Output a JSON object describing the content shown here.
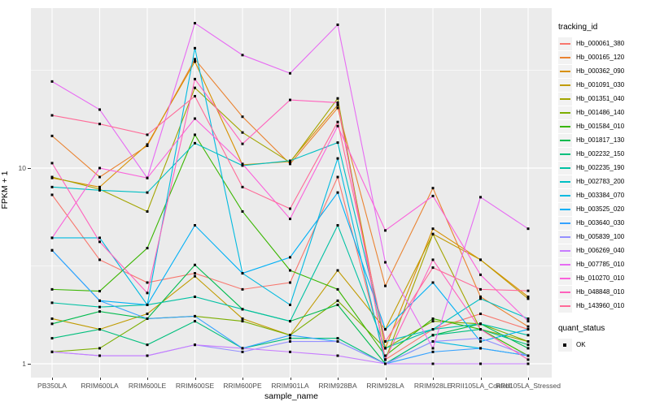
{
  "figure": {
    "panel_bg": "#EBEBEB",
    "grid_color": "#FFFFFF",
    "axis_text_color": "#4D4D4D",
    "point_color": "#000000"
  },
  "axes": {
    "x": {
      "title": "sample_name"
    },
    "y": {
      "title": "FPKM + 1",
      "tick_labels": [
        "10",
        "1"
      ]
    }
  },
  "legend": {
    "tracking_title": "tracking_id",
    "quant_title": "quant_status",
    "quant_items": [
      {
        "label": "OK",
        "shape": "black-square"
      }
    ]
  },
  "chart_data": {
    "type": "line",
    "xlabel": "sample_name",
    "ylabel": "FPKM + 1",
    "y_scale": "log10",
    "ylim": [
      1,
      66
    ],
    "y_major_ticks": [
      10,
      1
    ],
    "y_minor_gridlines": [
      31.62,
      3.162
    ],
    "grid": true,
    "legend_position": "right",
    "point_shape": "filled-square",
    "categories": [
      "PB350LA",
      "RRIM600LA",
      "RRIM600LE",
      "RRIM600SE",
      "RRIM600PE",
      "RRIM901LA",
      "RRIM928BA",
      "RRIM928LA",
      "RRIM928LE",
      "RRII105LA_Control",
      "RRII105LA_Stressed"
    ],
    "series": [
      {
        "name": "Hb_000061_380",
        "color": "#F8766D",
        "values": [
          7.3,
          3.4,
          2.6,
          2.9,
          2.4,
          2.6,
          9.0,
          1.05,
          1.5,
          1.8,
          1.5
        ]
      },
      {
        "name": "Hb_000165_120",
        "color": "#EA8331",
        "values": [
          14.6,
          9.0,
          13.0,
          36,
          18.3,
          10.5,
          20.3,
          2.5,
          7.9,
          2.2,
          1.55
        ]
      },
      {
        "name": "Hb_000362_090",
        "color": "#D89000",
        "values": [
          8.9,
          8.0,
          13.2,
          35,
          10.4,
          10.8,
          21,
          1.2,
          4.9,
          3.4,
          2.2
        ]
      },
      {
        "name": "Hb_001091_030",
        "color": "#C09B00",
        "values": [
          1.7,
          1.5,
          1.8,
          2.8,
          1.7,
          1.4,
          3.0,
          1.5,
          4.6,
          3.4,
          2.15
        ]
      },
      {
        "name": "Hb_001351_040",
        "color": "#A3A500",
        "values": [
          9.0,
          7.8,
          6.0,
          25.7,
          15.2,
          10.7,
          22.7,
          1.05,
          4.6,
          1.5,
          1.3
        ]
      },
      {
        "name": "Hb_001486_140",
        "color": "#7CAE00",
        "values": [
          1.15,
          1.2,
          1.7,
          1.75,
          1.65,
          1.4,
          2.1,
          1.2,
          1.65,
          1.6,
          1.3
        ]
      },
      {
        "name": "Hb_001584_010",
        "color": "#39B600",
        "values": [
          2.4,
          2.35,
          3.9,
          14.8,
          6.0,
          3.0,
          2.4,
          1.1,
          1.7,
          1.5,
          1.1
        ]
      },
      {
        "name": "Hb_001817_130",
        "color": "#00BB4E",
        "values": [
          1.6,
          1.85,
          1.7,
          3.2,
          1.9,
          1.65,
          2.0,
          1.0,
          1.4,
          1.6,
          1.2
        ]
      },
      {
        "name": "Hb_002232_150",
        "color": "#00BF7D",
        "values": [
          1.35,
          1.5,
          1.25,
          1.65,
          1.2,
          1.35,
          1.35,
          1.0,
          1.4,
          1.5,
          1.25
        ]
      },
      {
        "name": "Hb_002235_190",
        "color": "#00C1A3",
        "values": [
          2.05,
          1.95,
          2.0,
          2.2,
          1.9,
          1.65,
          5.1,
          1.2,
          1.5,
          1.6,
          1.4
        ]
      },
      {
        "name": "Hb_002783_200",
        "color": "#00BFC4",
        "values": [
          8.0,
          7.7,
          7.5,
          13.4,
          10.3,
          10.9,
          13.5,
          1.3,
          1.5,
          2.15,
          1.7
        ]
      },
      {
        "name": "Hb_003384_070",
        "color": "#00BAE0",
        "values": [
          4.4,
          4.4,
          2.0,
          41,
          2.9,
          2.0,
          11.2,
          1.0,
          1.3,
          1.2,
          1.1
        ]
      },
      {
        "name": "Hb_003525_020",
        "color": "#00B0F6",
        "values": [
          3.8,
          2.1,
          2.0,
          5.1,
          2.9,
          3.5,
          7.5,
          1.5,
          2.6,
          1.3,
          1.5
        ]
      },
      {
        "name": "Hb_003640_030",
        "color": "#35A2FF",
        "values": [
          3.8,
          2.1,
          1.7,
          1.75,
          1.2,
          1.4,
          1.3,
          1.0,
          1.15,
          1.2,
          1.1
        ]
      },
      {
        "name": "Hb_005839_100",
        "color": "#9590FF",
        "values": [
          1.15,
          1.1,
          1.1,
          1.25,
          1.15,
          1.3,
          1.3,
          1.0,
          1.3,
          1.35,
          1.1
        ]
      },
      {
        "name": "Hb_006269_040",
        "color": "#C77CFF",
        "values": [
          1.15,
          1.1,
          1.1,
          1.25,
          1.2,
          1.15,
          1.1,
          1.0,
          1.0,
          1.0,
          1.0
        ]
      },
      {
        "name": "Hb_007785_010",
        "color": "#E76BF3",
        "values": [
          27.7,
          19.9,
          8.9,
          55,
          37.8,
          30.5,
          54,
          3.3,
          1.2,
          7.1,
          4.9
        ]
      },
      {
        "name": "Hb_010270_010",
        "color": "#FA62DB",
        "values": [
          4.4,
          10.0,
          8.9,
          17.9,
          10.5,
          5.5,
          16.4,
          4.8,
          7.2,
          2.85,
          1.65
        ]
      },
      {
        "name": "Hb_048848_010",
        "color": "#FF62BC",
        "values": [
          10.6,
          4.2,
          2.3,
          28.5,
          13.3,
          22.3,
          21.6,
          1.05,
          3.4,
          1.5,
          1.05
        ]
      },
      {
        "name": "Hb_143960_010",
        "color": "#FF6A98",
        "values": [
          18.6,
          16.8,
          14.8,
          23.3,
          8.0,
          6.2,
          17.2,
          1.3,
          3.1,
          2.4,
          2.36
        ]
      }
    ]
  }
}
